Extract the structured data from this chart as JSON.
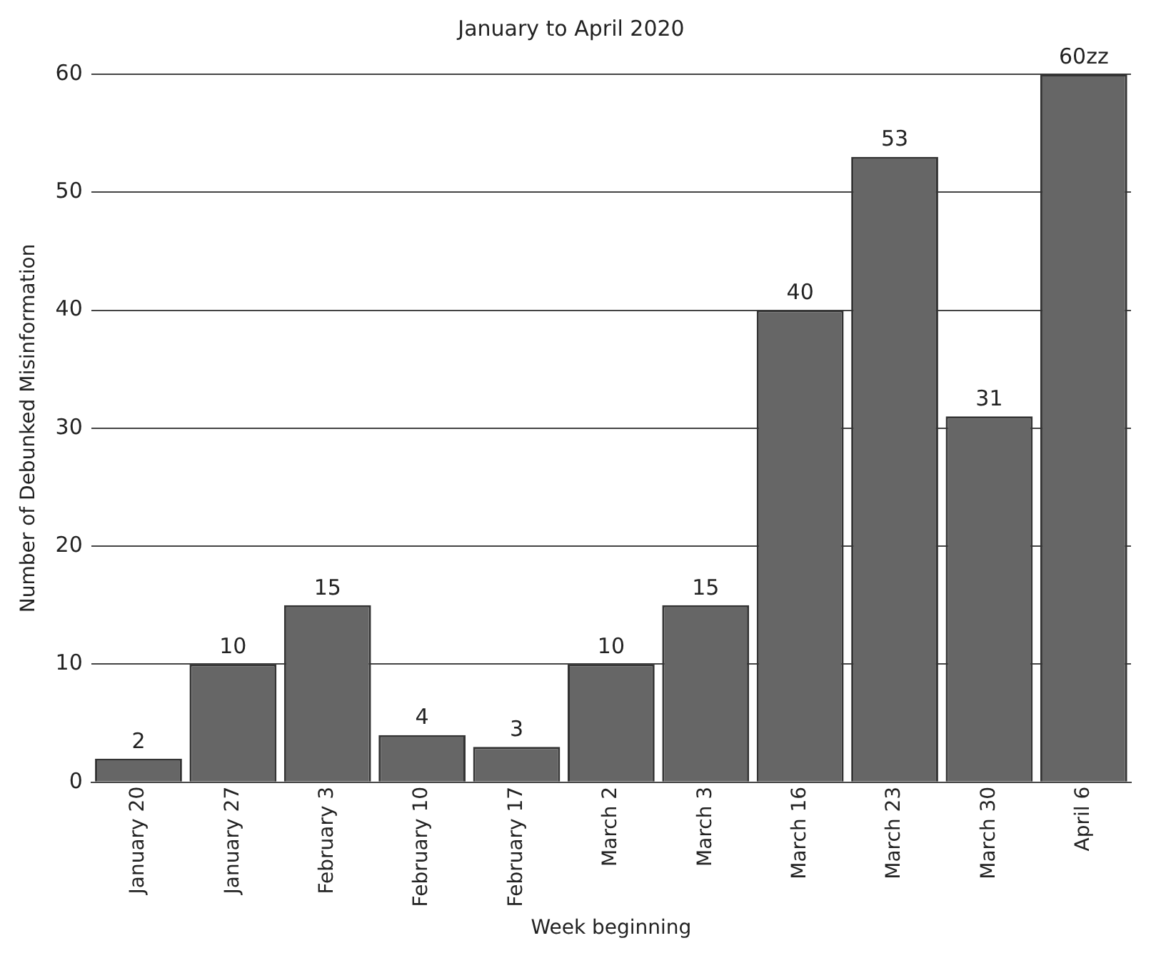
{
  "chart_data": {
    "type": "bar",
    "title": "January to April 2020",
    "xlabel": "Week beginning",
    "ylabel": "Number of Debunked Misinformation",
    "categories": [
      "January 20",
      "January 27",
      "February 3",
      "February 10",
      "February 17",
      "March 2",
      "March 3",
      "March 16",
      "March 23",
      "March 30",
      "April 6"
    ],
    "values": [
      2,
      10,
      15,
      4,
      3,
      10,
      15,
      40,
      53,
      31,
      60
    ],
    "value_labels": [
      "2",
      "10",
      "15",
      "4",
      "3",
      "10",
      "15",
      "40",
      "53",
      "31",
      "60zz"
    ],
    "color": "#666666",
    "ylim": [
      0,
      60
    ],
    "yticks": [
      0,
      10,
      20,
      30,
      40,
      50,
      60
    ],
    "grid": "y",
    "legend": false
  }
}
